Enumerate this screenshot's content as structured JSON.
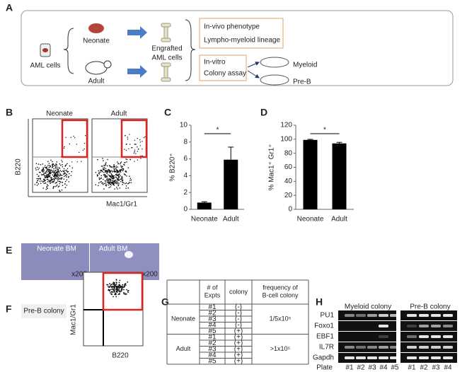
{
  "panel_labels": [
    "A",
    "B",
    "C",
    "D",
    "E",
    "F",
    "G",
    "H"
  ],
  "panel_a": {
    "source": "AML cells",
    "neonate": "Neonate",
    "adult": "Adult",
    "engrafted": [
      "Engrafted",
      "AML cells"
    ],
    "in_vivo": [
      "In-vivo phenotype",
      "Lympho-myeloid lineage"
    ],
    "in_vitro": [
      "In-vitro",
      "Colony assay"
    ],
    "myeloid": "Myeloid",
    "pre_b": "Pre-B"
  },
  "panel_b": {
    "titles": [
      "Neonate",
      "Adult"
    ],
    "ylabel": "B220",
    "xlabel": "Mac1/Gr1"
  },
  "chart_data": [
    {
      "type": "bar",
      "ylabel": "% B220⁺",
      "categories": [
        "Neonate",
        "Adult"
      ],
      "values": [
        0.8,
        5.9
      ],
      "errors": [
        0.1,
        1.5
      ],
      "color": "#000000",
      "ylim": [
        0,
        10
      ],
      "yticks": [
        0,
        2,
        4,
        6,
        8,
        10
      ],
      "annotation": "*"
    },
    {
      "type": "bar",
      "ylabel": "% Mac1⁺ Gr1⁺",
      "categories": [
        "Neonate",
        "Adult"
      ],
      "values": [
        99,
        94
      ],
      "errors": [
        0.8,
        1.5
      ],
      "color": "#000000",
      "ylim": [
        0,
        120
      ],
      "yticks": [
        0,
        20,
        40,
        60,
        80,
        100,
        120
      ],
      "annotation": "*"
    }
  ],
  "panel_e": {
    "labels": [
      "Neonate BM",
      "Adult BM"
    ],
    "magnification": [
      "x200",
      "x200"
    ]
  },
  "panel_f": {
    "title": "Pre-B colony",
    "ylabel": "Mac1/Gr1",
    "xlabel": "B220"
  },
  "panel_g": {
    "header": [
      "# of Expts",
      "colony",
      "frequency of B-cell colony"
    ],
    "groups": [
      {
        "name": "Neonate",
        "expts": [
          "#1",
          "#2",
          "#3",
          "#4",
          "#5"
        ],
        "colony": [
          "(-)",
          "(-)",
          "(-)",
          "(-)",
          "(+)"
        ],
        "frequency": "1/5x10⁵"
      },
      {
        "name": "Adult",
        "expts": [
          "#1",
          "#2",
          "#3",
          "#4",
          "#5"
        ],
        "colony": [
          "(+)",
          "(+)",
          "(+)",
          "(+)",
          "(+)"
        ],
        "frequency": ">1x10⁵"
      }
    ]
  },
  "panel_h": {
    "groups": [
      "Myeloid colony",
      "Pre-B colony"
    ],
    "genes": [
      "PU1",
      "Foxo1",
      "EBF1",
      "IL7R",
      "Gapdh"
    ],
    "plate_label": "Plate",
    "plates": [
      "#1",
      "#2",
      "#3",
      "#4",
      "#5",
      "#1",
      "#2",
      "#3",
      "#4"
    ]
  }
}
